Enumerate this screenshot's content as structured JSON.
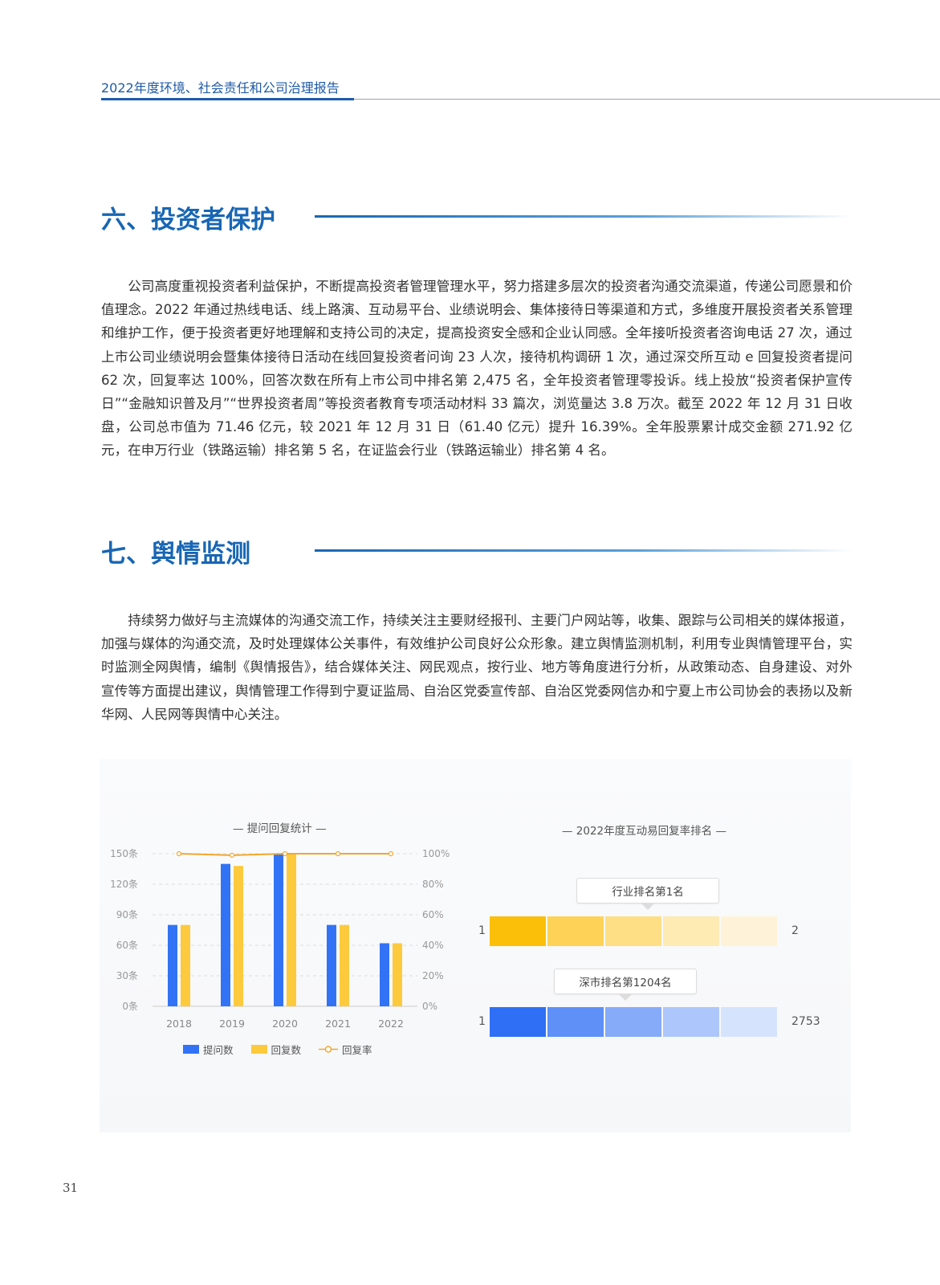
{
  "header": {
    "title": "2022年度环境、社会责任和公司治理报告"
  },
  "section6": {
    "title": "六、投资者保护",
    "paragraph": "公司高度重视投资者利益保护，不断提高投资者管理管理水平，努力搭建多层次的投资者沟通交流渠道，传递公司愿景和价值理念。2022 年通过热线电话、线上路演、互动易平台、业绩说明会、集体接待日等渠道和方式，多维度开展投资者关系管理和维护工作，便于投资者更好地理解和支持公司的决定，提高投资安全感和企业认同感。全年接听投资者咨询电话 27 次，通过上市公司业绩说明会暨集体接待日活动在线回复投资者问询 23 人次，接待机构调研 1 次，通过深交所互动 e 回复投资者提问 62 次，回复率达 100%，回答次数在所有上市公司中排名第 2,475 名，全年投资者管理零投诉。线上投放“投资者保护宣传日”“金融知识普及月”“世界投资者周”等投资者教育专项活动材料 33 篇次，浏览量达 3.8 万次。截至 2022 年 12 月 31 日收盘，公司总市值为 71.46 亿元，较 2021 年 12 月 31 日（61.40 亿元）提升 16.39%。全年股票累计成交金额 271.92 亿元，在申万行业（铁路运输）排名第 5 名，在证监会行业（铁路运输业）排名第 4 名。"
  },
  "section7": {
    "title": "七、舆情监测",
    "paragraph": "持续努力做好与主流媒体的沟通交流工作，持续关注主要财经报刊、主要门户网站等，收集、跟踪与公司相关的媒体报道，加强与媒体的沟通交流，及时处理媒体公关事件，有效维护公司良好公众形象。建立舆情监测机制，利用专业舆情管理平台，实时监测全网舆情，编制《舆情报告》，结合媒体关注、网民观点，按行业、地方等角度进行分析，从政策动态、自身建设、对外宣传等方面提出建议，舆情管理工作得到宁夏证监局、自治区党委宣传部、自治区党委网信办和宁夏上市公司协会的表扬以及新华网、人民网等舆情中心关注。"
  },
  "chart_data": [
    {
      "type": "bar",
      "title": "— 提问回复统计 —",
      "categories": [
        "2018",
        "2019",
        "2020",
        "2021",
        "2022"
      ],
      "series": [
        {
          "name": "提问数",
          "values": [
            80,
            140,
            150,
            80,
            62
          ],
          "color": "#3273f6",
          "axis": "left"
        },
        {
          "name": "回复数",
          "values": [
            80,
            138,
            150,
            80,
            62
          ],
          "color": "#fdca3d",
          "axis": "left"
        },
        {
          "name": "回复率",
          "type": "line",
          "values": [
            100,
            99,
            100,
            100,
            100
          ],
          "color": "#f0a830",
          "axis": "right"
        }
      ],
      "y_left": {
        "range": [
          0,
          150
        ],
        "ticks": [
          "0条",
          "30条",
          "60条",
          "90条",
          "120条",
          "150条"
        ]
      },
      "y_right": {
        "range": [
          0,
          100
        ],
        "ticks": [
          "0%",
          "20%",
          "40%",
          "60%",
          "80%",
          "100%"
        ]
      },
      "grid": true,
      "legend": "bottom"
    },
    {
      "type": "table",
      "title": "— 2022年度互动易回复率排名 —",
      "rows": [
        {
          "label": "行业排名第1名",
          "min": "1",
          "max": "2",
          "rank": 1,
          "colors": [
            "#fbbf0a",
            "#fdd256",
            "#fedf85",
            "#feeab3",
            "#fef3d8"
          ]
        },
        {
          "label": "深市排名第1204名",
          "min": "1",
          "max": "2753",
          "rank": 1204,
          "colors": [
            "#2f6ff5",
            "#5e90f7",
            "#86abf9",
            "#adc6fb",
            "#d6e3fd"
          ]
        }
      ]
    }
  ],
  "footer": {
    "page_number": "31"
  }
}
